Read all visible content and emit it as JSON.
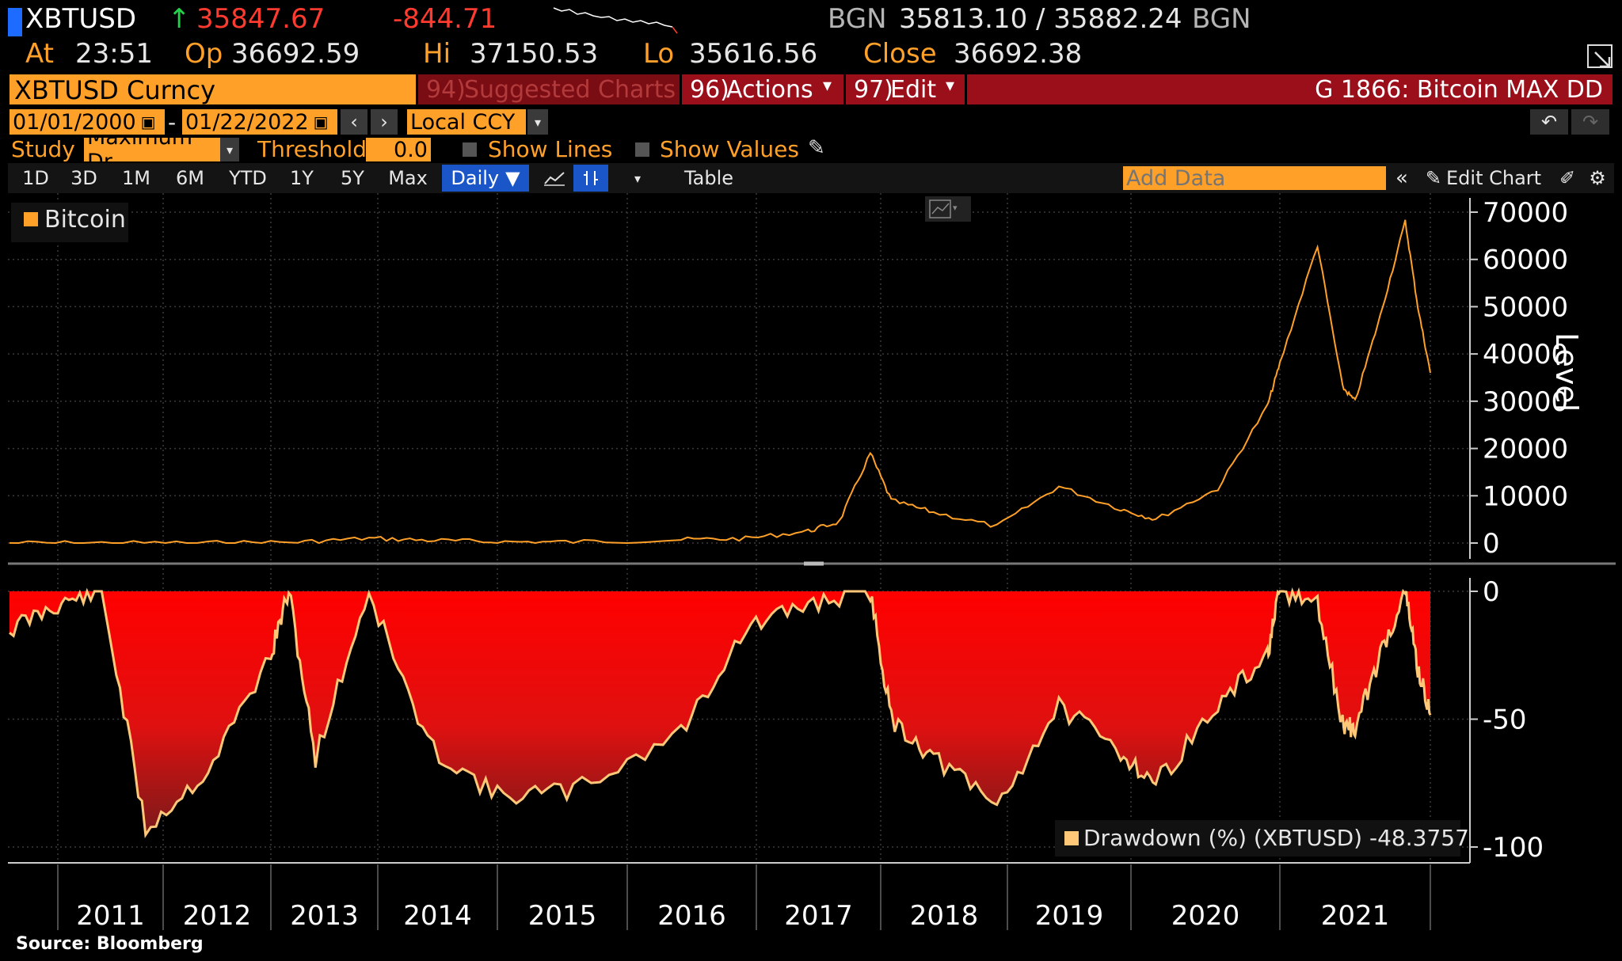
{
  "header": {
    "ticker": "XBTUSD",
    "arrow": "↑",
    "last_price": "35847.67",
    "change": "-844.71",
    "bid_source": "BGN",
    "bid_ask": "35813.10 / 35882.24",
    "ask_source": "BGN",
    "at_label": "At",
    "at_time": "23:51",
    "op_label": "Op",
    "op_value": "36692.59",
    "hi_label": "Hi",
    "hi_value": "37150.53",
    "lo_label": "Lo",
    "lo_value": "35616.56",
    "close_label": "Close",
    "close_value": "36692.38"
  },
  "menu": {
    "security": "XBTUSD Curncy",
    "suggested_num": "94)",
    "suggested": "Suggested Charts",
    "actions_num": "96)",
    "actions": "Actions",
    "edit_num": "97)",
    "edit": "Edit",
    "title": "G 1866: Bitcoin MAX DD"
  },
  "date_range": {
    "start": "01/01/2000",
    "separator": "-",
    "end": "01/22/2022",
    "currency": "Local CCY"
  },
  "study": {
    "study_label": "Study",
    "study_value": "Maximum Dr",
    "threshold_label": "Threshold",
    "threshold_value": "0.0",
    "show_lines": "Show Lines",
    "show_values": "Show Values"
  },
  "toolbar": {
    "periods": [
      "1D",
      "3D",
      "1M",
      "6M",
      "YTD",
      "1Y",
      "5Y",
      "Max"
    ],
    "frequency": "Daily",
    "table": "Table",
    "add_data_placeholder": "Add Data",
    "edit_chart": "Edit Chart"
  },
  "legend": {
    "top": "Bitcoin",
    "bottom": "Drawdown (%) (XBTUSD) -48.3757"
  },
  "axis": {
    "top_ticks": [
      "70000",
      "60000",
      "50000",
      "40000",
      "30000",
      "20000",
      "10000",
      "0"
    ],
    "top_label": "Level",
    "bottom_ticks": [
      "0",
      "-50",
      "-100"
    ],
    "years": [
      "2011",
      "2012",
      "2013",
      "2014",
      "2015",
      "2016",
      "2017",
      "2018",
      "2019",
      "2020",
      "2021"
    ]
  },
  "source": "Source:  Bloomberg",
  "colors": {
    "accent": "#ffa028",
    "header_red": "#9b0f1b",
    "drawdown_fill": "#ff0000",
    "line": "#ffc878"
  },
  "chart_data": [
    {
      "type": "line",
      "title": "",
      "ylabel": "Level",
      "ylim": [
        0,
        70000
      ],
      "series": [
        {
          "name": "Bitcoin",
          "x": [
            "2010-07",
            "2011-06",
            "2012-06",
            "2013-04",
            "2013-12",
            "2014-06",
            "2015-01",
            "2015-08",
            "2016-06",
            "2016-12",
            "2017-06",
            "2017-09",
            "2017-12",
            "2018-02",
            "2018-06",
            "2018-12",
            "2019-06",
            "2019-12",
            "2020-03",
            "2020-08",
            "2020-12",
            "2021-01",
            "2021-04",
            "2021-06",
            "2021-07",
            "2021-09",
            "2021-11",
            "2021-12",
            "2022-01"
          ],
          "values": [
            0,
            15,
            7,
            200,
            1000,
            600,
            250,
            250,
            700,
            950,
            2500,
            4500,
            19000,
            9000,
            6500,
            3500,
            12000,
            7200,
            5000,
            11500,
            29000,
            38000,
            63000,
            33000,
            30000,
            48000,
            68000,
            50000,
            36000
          ]
        }
      ]
    },
    {
      "type": "area",
      "title": "",
      "ylim": [
        -100,
        0
      ],
      "series": [
        {
          "name": "Drawdown (%) (XBTUSD)",
          "x": [
            "2010-07",
            "2011-01",
            "2011-06",
            "2011-11",
            "2012-06",
            "2013-01",
            "2013-03",
            "2013-06",
            "2013-12",
            "2014-06",
            "2015-01",
            "2015-08",
            "2016-06",
            "2016-12",
            "2017-06",
            "2017-12",
            "2018-02",
            "2018-06",
            "2018-12",
            "2019-06",
            "2019-12",
            "2020-03",
            "2020-08",
            "2020-12",
            "2021-01",
            "2021-04",
            "2021-06",
            "2021-07",
            "2021-09",
            "2021-11",
            "2021-12",
            "2022-01"
          ],
          "values": [
            -15,
            -5,
            0,
            -93,
            -70,
            -25,
            0,
            -65,
            0,
            -60,
            -80,
            -78,
            -55,
            -15,
            -5,
            0,
            -50,
            -65,
            -84,
            -45,
            -63,
            -75,
            -45,
            -25,
            0,
            -5,
            -52,
            -54,
            -25,
            0,
            -30,
            -48.3757
          ]
        }
      ]
    }
  ]
}
